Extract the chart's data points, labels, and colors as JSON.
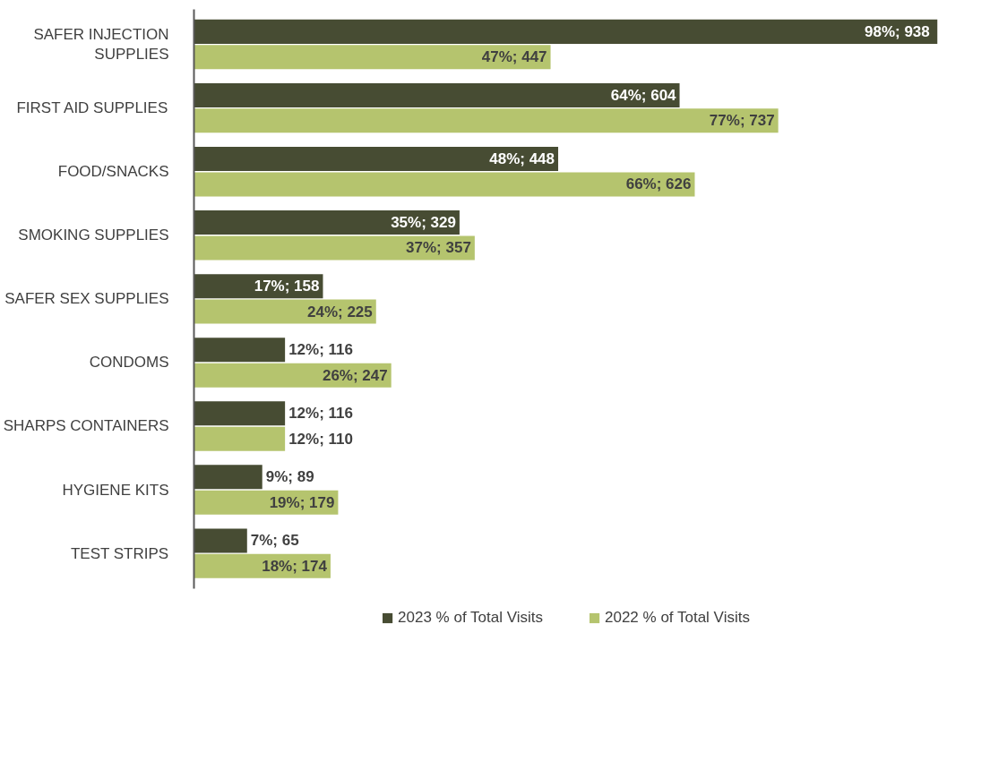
{
  "chart_data": {
    "type": "bar",
    "orientation": "horizontal",
    "legend": "bottom",
    "grid": false,
    "categories": [
      "SAFER INJECTION SUPPLIES",
      "FIRST AID SUPPLIES",
      "FOOD/SNACKS",
      "SMOKING SUPPLIES",
      "SAFER SEX SUPPLIES",
      "CONDOMS",
      "SHARPS CONTAINERS",
      "HYGIENE KITS",
      "TEST STRIPS"
    ],
    "series": [
      {
        "name": "2023 % of Total Visits",
        "color": "#474c33",
        "values": [
          98,
          64,
          48,
          35,
          17,
          12,
          12,
          9,
          7
        ],
        "value_labels": [
          "98%;  938",
          "64%; 604",
          "48%; 448",
          "35%; 329",
          "17%; 158",
          "12%; 116",
          "12%; 116",
          "9%; 89",
          "7%; 65"
        ]
      },
      {
        "name": "2022 % of Total Visits",
        "color": "#b5c46e",
        "values": [
          47,
          77,
          66,
          37,
          24,
          26,
          12,
          19,
          18
        ],
        "value_labels": [
          "47%; 447",
          "77%; 737",
          "66%; 626",
          "37%; 357",
          "24%; 225",
          "26%; 247",
          "12%; 110",
          "19%; 179",
          "18%; 174"
        ]
      }
    ]
  }
}
